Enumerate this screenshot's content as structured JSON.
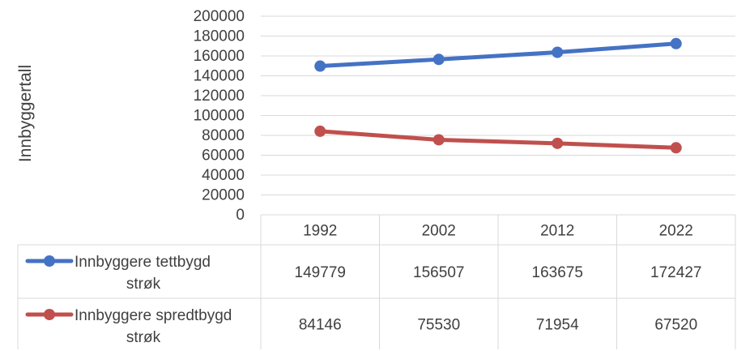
{
  "chart_data": {
    "type": "line",
    "title": "",
    "xlabel": "",
    "ylabel": "Innbyggertall",
    "ylim": [
      0,
      200000
    ],
    "y_ticks": [
      0,
      20000,
      40000,
      60000,
      80000,
      100000,
      120000,
      140000,
      160000,
      180000,
      200000
    ],
    "y_tick_labels": [
      "0",
      "20000",
      "40000",
      "60000",
      "80000",
      "100000",
      "120000",
      "140000",
      "160000",
      "180000",
      "200000"
    ],
    "categories": [
      "1992",
      "2002",
      "2012",
      "2022"
    ],
    "grid": "horizontal",
    "legend": "data-table-below",
    "series": [
      {
        "name": "Innbyggere tettbygd strøk",
        "name_lines": [
          "Innbyggere tettbygd",
          "strøk"
        ],
        "color": "#4472C4",
        "values": [
          149779,
          156507,
          163675,
          172427
        ],
        "value_labels": [
          "149779",
          "156507",
          "163675",
          "172427"
        ]
      },
      {
        "name": "Innbyggere spredtbygd strøk",
        "name_lines": [
          "Innbyggere spredtbygd",
          "strøk"
        ],
        "color": "#C0504D",
        "values": [
          84146,
          75530,
          71954,
          67520
        ],
        "value_labels": [
          "84146",
          "75530",
          "71954",
          "67520"
        ]
      }
    ]
  }
}
